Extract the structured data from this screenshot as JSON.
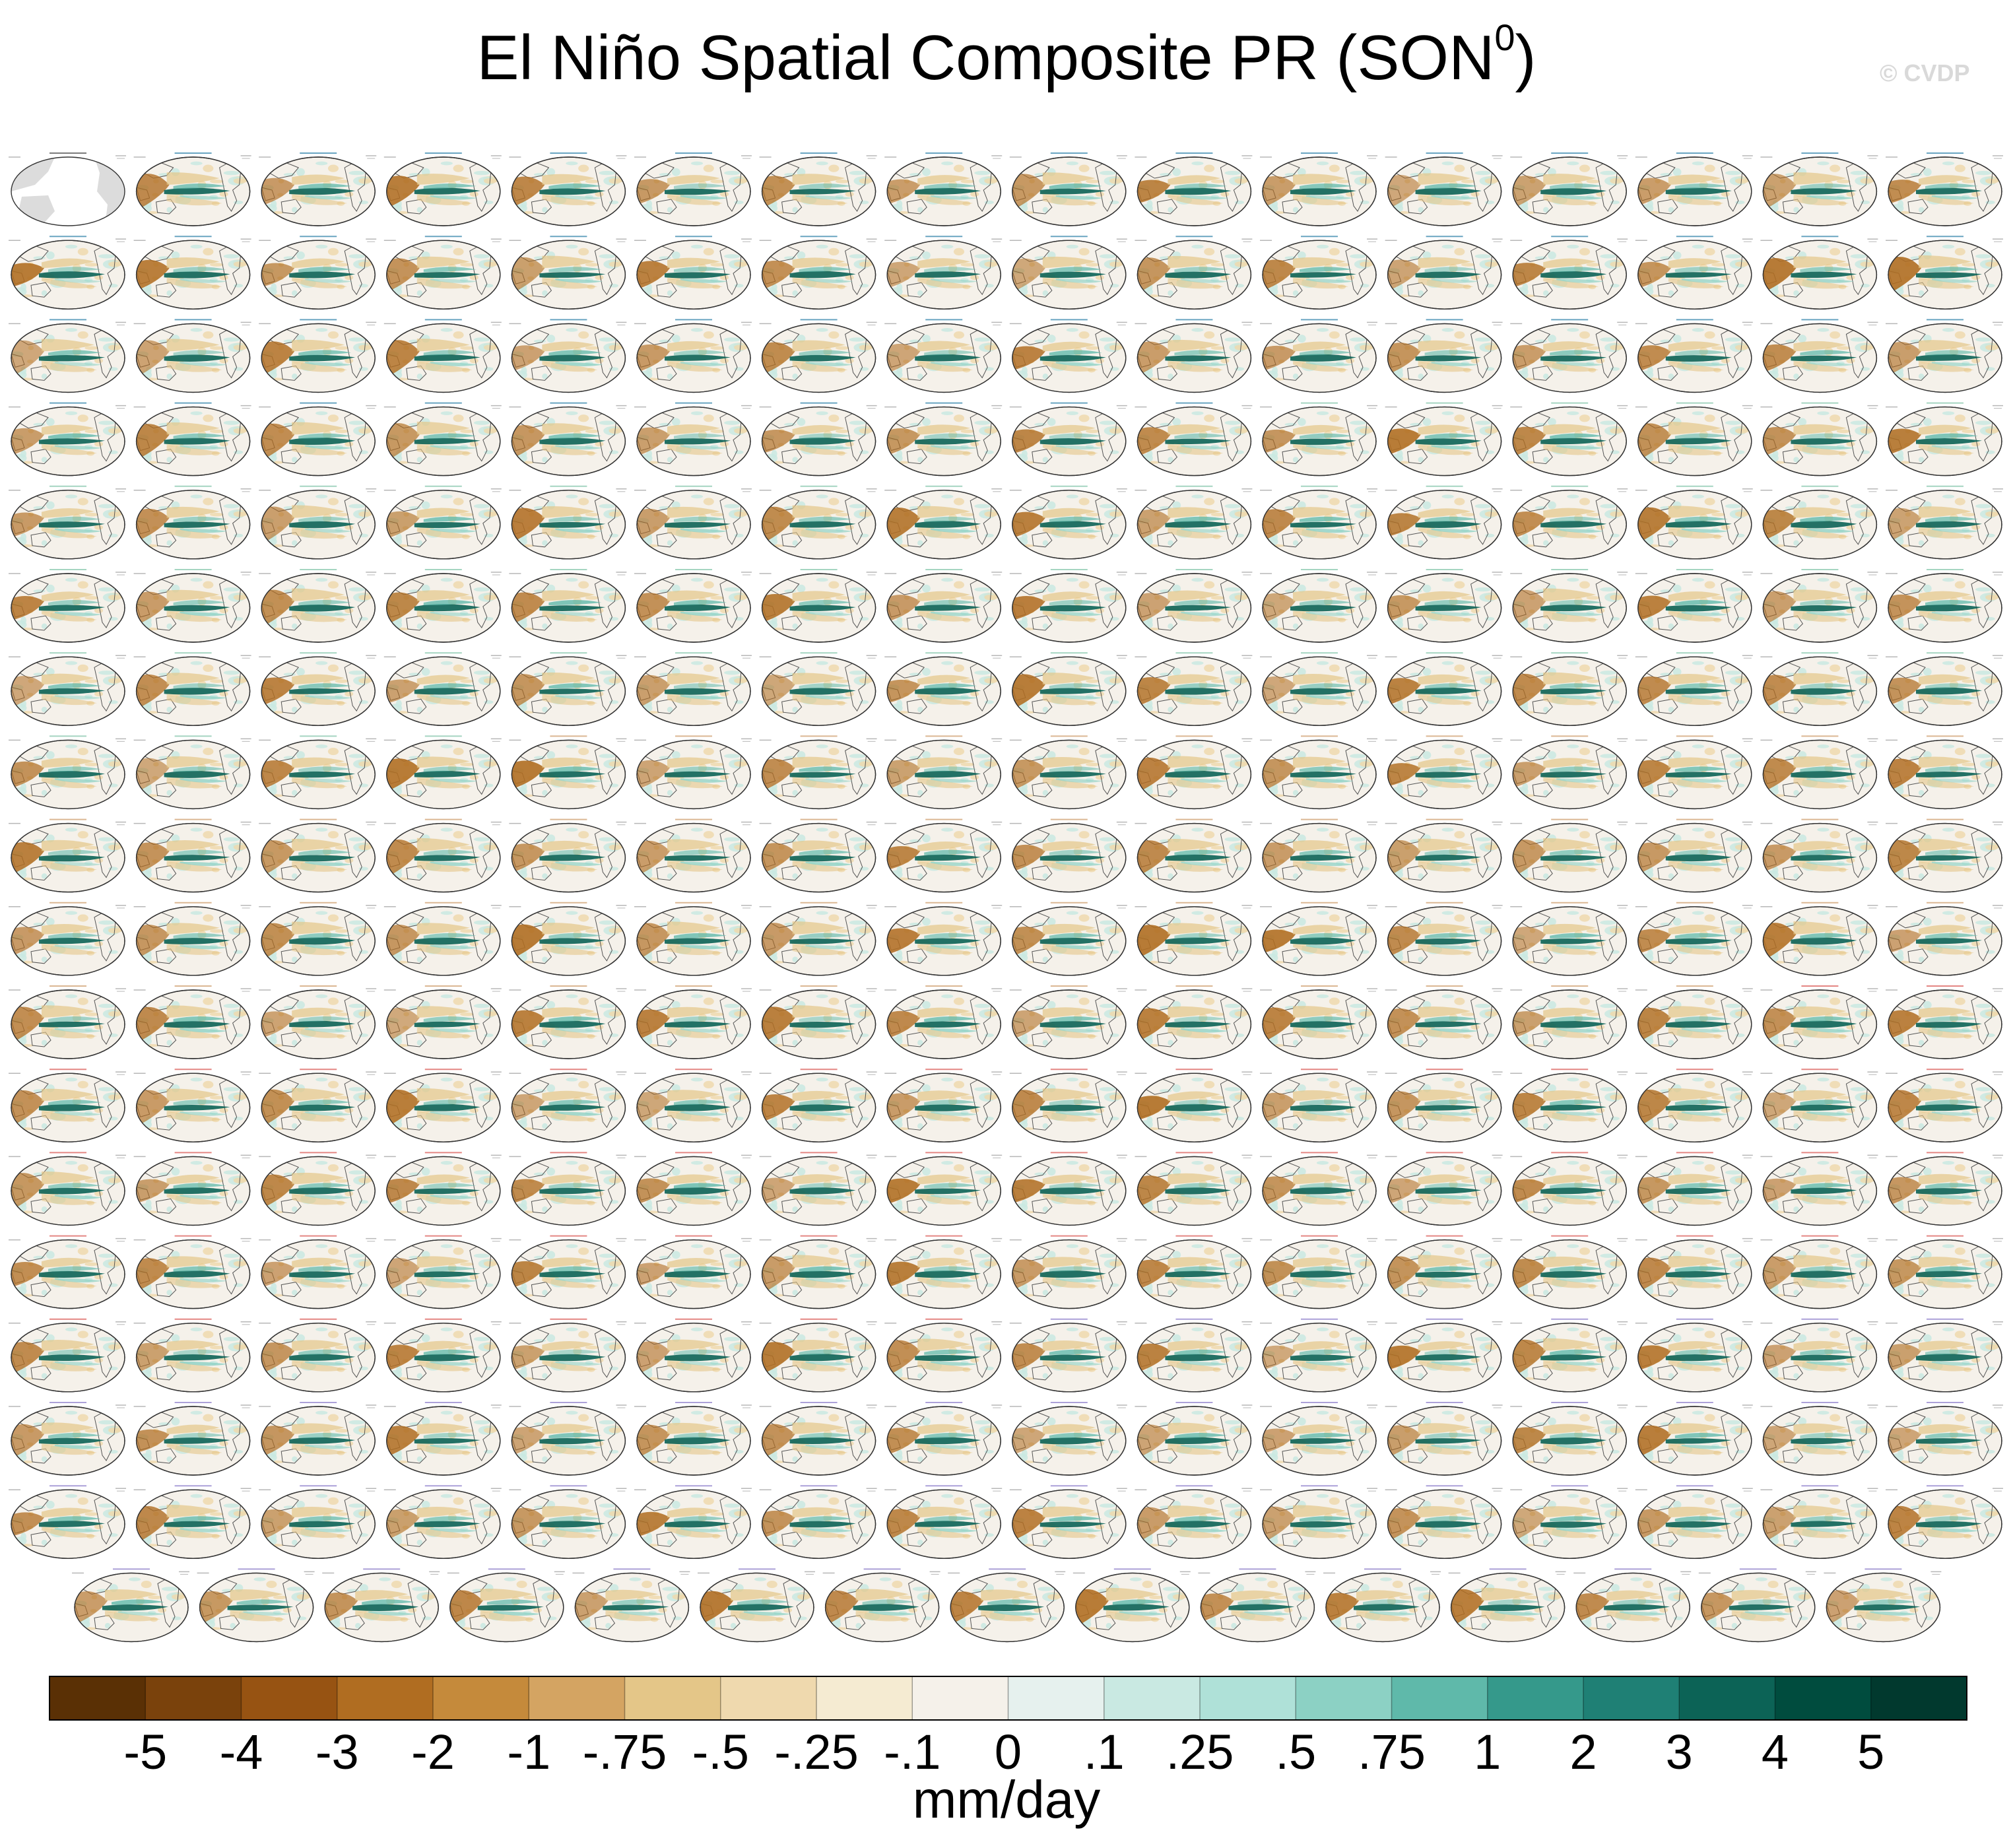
{
  "title": {
    "main": "El Niño Spatial Composite PR (SON",
    "superscript": "0",
    "close": ")"
  },
  "watermark": "© CVDP",
  "chart_data": {
    "type": "heatmap",
    "title": "El Niño Spatial Composite PR (SON0)",
    "variable": "PR",
    "season": "SON",
    "projection": "global map panels (Pacific-centred)",
    "panel_layout": {
      "rows": 18,
      "columns": 16,
      "last_row_panels": 15
    },
    "colorbar": {
      "units": "mm/day",
      "tick_labels": [
        "-5",
        "-4",
        "-3",
        "-2",
        "-1",
        "-.75",
        "-.5",
        "-.25",
        "-.1",
        "0",
        ".1",
        ".25",
        ".5",
        ".75",
        "1",
        "2",
        "3",
        "4",
        "5"
      ],
      "colors": [
        "#5a3005",
        "#7a420c",
        "#975312",
        "#b06d21",
        "#c58a3b",
        "#d4a462",
        "#e4c688",
        "#efd9ae",
        "#f5ebd2",
        "#f5f1ea",
        "#e6f1ee",
        "#c9e9e2",
        "#afe1d8",
        "#8cd1c4",
        "#5fb9aa",
        "#35998b",
        "#1f8075",
        "#0c6356",
        "#004c3e",
        "#01392e"
      ]
    },
    "panels": [
      {
        "label": "GPCC",
        "years": "1950-2022"
      },
      {
        "label": "GPCP",
        "years": ""
      },
      {
        "label": "ACCESS-ESM1-5",
        "years": "2027-2099"
      },
      {
        "label": "CanESM5",
        "years": "2027-2099"
      },
      {
        "label": "CESM2",
        "years": "2027-2099"
      },
      {
        "label": "CESM2-LE",
        "years": "2027-2099"
      }
    ],
    "panel_colors": {
      "land_obs": "#dcdcdc",
      "ocean_neutral": "#f5f1ea",
      "coast": "#555555",
      "positive_anomaly": "#0c6356",
      "negative_anomaly": "#b06d21"
    },
    "panel_label_colors": [
      "#2a7fa8",
      "#7fc4a8",
      "#cc9966",
      "#d9534f",
      "#8a78c8"
    ]
  },
  "colorbar_title": "mm/day"
}
